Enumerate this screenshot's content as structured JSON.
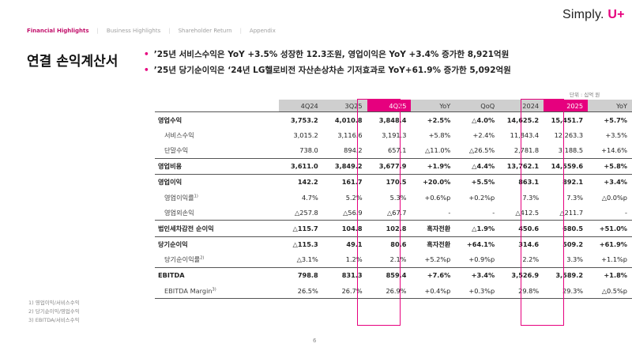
{
  "nav": {
    "items": [
      "Financial Highlights",
      "Business Highlights",
      "Shareholder Return",
      "Appendix"
    ],
    "active_color": "#c2106b"
  },
  "logo": {
    "text": "Simply.",
    "mark": "U+"
  },
  "page_title": "연결 손익계산서",
  "bullets": [
    "’25년 서비스수익은 YoY +3.5% 성장한 12.3조원, 영업이익은 YoY +3.4% 증가한 8,921억원",
    "’25년 당기순이익은 ‘24년 LG헬로비전 자산손상차손 기저효과로 YoY+61.9% 증가한 5,092억원"
  ],
  "unit_label": "단위 : 십억 원",
  "table": {
    "headers": [
      "4Q24",
      "3Q25",
      "4Q25",
      "YoY",
      "QoQ",
      "2024",
      "2025",
      "YoY"
    ],
    "rows": [
      {
        "label": "영업수익",
        "sup": "",
        "cells": [
          "3,753.2",
          "4,010.8",
          "3,848.4",
          "+2.5%",
          "△4.0%",
          "14,625.2",
          "15,451.7",
          "+5.7%"
        ]
      },
      {
        "label": "서비스수익",
        "sup": "",
        "cells": [
          "3,015.2",
          "3,116.6",
          "3,191.3",
          "+5.8%",
          "+2.4%",
          "11,843.4",
          "12,263.3",
          "+3.5%"
        ]
      },
      {
        "label": "단말수익",
        "sup": "",
        "cells": [
          "738.0",
          "894.2",
          "657.1",
          "△11.0%",
          "△26.5%",
          "2,781.8",
          "3,188.5",
          "+14.6%"
        ]
      },
      {
        "label": "영업비용",
        "sup": "",
        "cells": [
          "3,611.0",
          "3,849.2",
          "3,677.9",
          "+1.9%",
          "△4.4%",
          "13,762.1",
          "14,559.6",
          "+5.8%"
        ]
      },
      {
        "label": "영업이익",
        "sup": "",
        "cells": [
          "142.2",
          "161.7",
          "170.5",
          "+20.0%",
          "+5.5%",
          "863.1",
          "892.1",
          "+3.4%"
        ]
      },
      {
        "label": "영업이익률",
        "sup": "1)",
        "cells": [
          "4.7%",
          "5.2%",
          "5.3%",
          "+0.6%p",
          "+0.2%p",
          "7.3%",
          "7.3%",
          "△0.0%p"
        ]
      },
      {
        "label": "영업외손익",
        "sup": "",
        "cells": [
          "△257.8",
          "△56.9",
          "△67.7",
          "-",
          "-",
          "△412.5",
          "△211.7",
          "-"
        ]
      },
      {
        "label": "법인세차감전 순이익",
        "sup": "",
        "cells": [
          "△115.7",
          "104.8",
          "102.8",
          "흑자전환",
          "△1.9%",
          "450.6",
          "680.5",
          "+51.0%"
        ]
      },
      {
        "label": "당기순이익",
        "sup": "",
        "cells": [
          "△115.3",
          "49.1",
          "80.6",
          "흑자전환",
          "+64.1%",
          "314.6",
          "509.2",
          "+61.9%"
        ]
      },
      {
        "label": "당기순이익률",
        "sup": "2)",
        "cells": [
          "△3.1%",
          "1.2%",
          "2.1%",
          "+5.2%p",
          "+0.9%p",
          "2.2%",
          "3.3%",
          "+1.1%p"
        ]
      },
      {
        "label": "EBITDA",
        "sup": "",
        "cells": [
          "798.8",
          "831.3",
          "859.4",
          "+7.6%",
          "+3.4%",
          "3,526.9",
          "3,589.2",
          "+1.8%"
        ]
      },
      {
        "label": "EBITDA Margin",
        "sup": "3)",
        "cells": [
          "26.5%",
          "26.7%",
          "26.9%",
          "+0.4%p",
          "+0.3%p",
          "29.8%",
          "29.3%",
          "△0.5%p"
        ]
      }
    ]
  },
  "footnotes": [
    "1) 영업이익/서비스수익",
    "2) 당기순이익/영업수익",
    "3) EBITDA/서비스수익"
  ],
  "page_number": "6",
  "colors": {
    "accent": "#e6007e",
    "header_gray": "#cfcfcf"
  }
}
